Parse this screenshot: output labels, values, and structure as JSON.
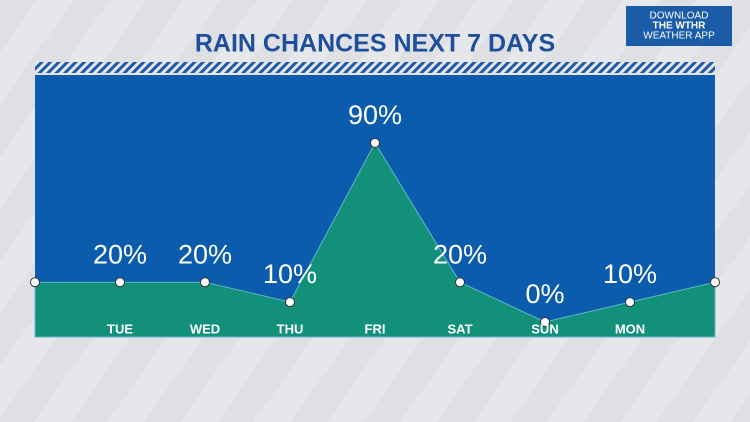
{
  "chart_data": {
    "type": "area",
    "title": "RAIN CHANCES NEXT 7 DAYS",
    "categories": [
      null,
      "TUE",
      "WED",
      "THU",
      "FRI",
      "SAT",
      "SUN",
      "MON",
      null
    ],
    "values": [
      20,
      20,
      20,
      10,
      90,
      20,
      0,
      10,
      20
    ],
    "value_labels": [
      null,
      "20%",
      "20%",
      "10%",
      "90%",
      "20%",
      "0%",
      "10%",
      null
    ],
    "color": "#13907a"
  },
  "badge": {
    "lines": [
      "DOWNLOAD",
      "THE WTHR",
      "WEATHER APP"
    ]
  }
}
